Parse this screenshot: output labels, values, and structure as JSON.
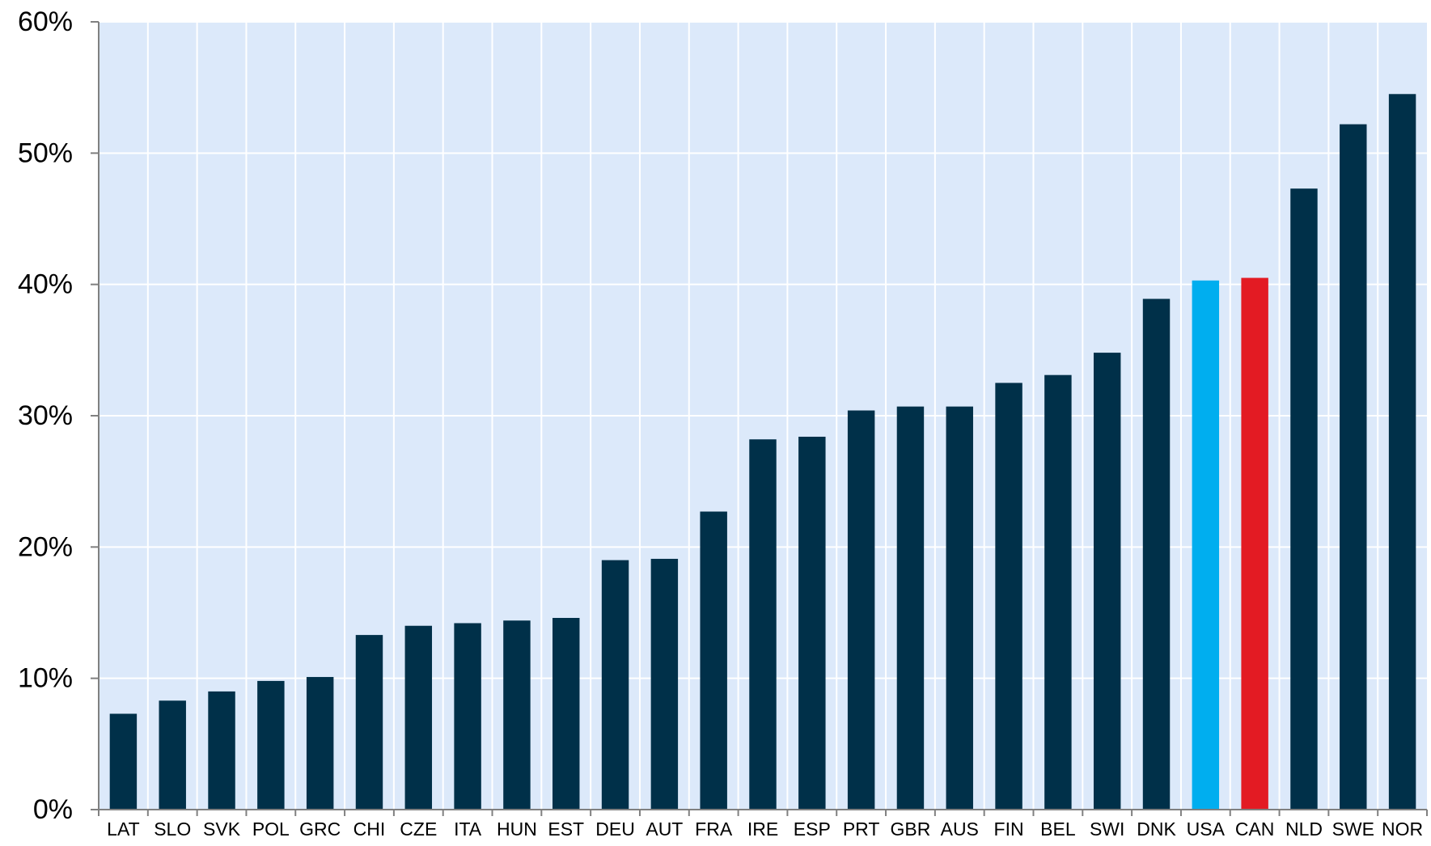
{
  "chart_data": {
    "type": "bar",
    "categories": [
      "LAT",
      "SLO",
      "SVK",
      "POL",
      "GRC",
      "CHI",
      "CZE",
      "ITA",
      "HUN",
      "EST",
      "DEU",
      "AUT",
      "FRA",
      "IRE",
      "ESP",
      "PRT",
      "GBR",
      "AUS",
      "FIN",
      "BEL",
      "SWI",
      "DNK",
      "USA",
      "CAN",
      "NLD",
      "SWE",
      "NOR"
    ],
    "values": [
      7.3,
      8.3,
      9.0,
      9.8,
      10.1,
      13.3,
      14.0,
      14.2,
      14.4,
      14.6,
      19.0,
      19.1,
      22.7,
      28.2,
      28.4,
      30.4,
      30.7,
      30.7,
      32.5,
      33.1,
      34.8,
      38.9,
      40.3,
      40.5,
      47.3,
      52.2,
      54.5
    ],
    "ylim": [
      0,
      60
    ],
    "yticks": [
      "0%",
      "10%",
      "20%",
      "30%",
      "40%",
      "50%",
      "60%"
    ],
    "ytick_values": [
      0,
      10,
      20,
      30,
      40,
      50,
      60
    ],
    "grid": true,
    "title": "",
    "xlabel": "",
    "ylabel": "",
    "colors": {
      "default_bar": "#003049",
      "highlight_usa": "#00AEEF",
      "highlight_can": "#E31B23",
      "plot_background": "#DCE9FA",
      "grid": "#FFFFFF",
      "axis": "#808080"
    },
    "bar_colors": {
      "USA": "#00AEEF",
      "CAN": "#E31B23"
    }
  }
}
